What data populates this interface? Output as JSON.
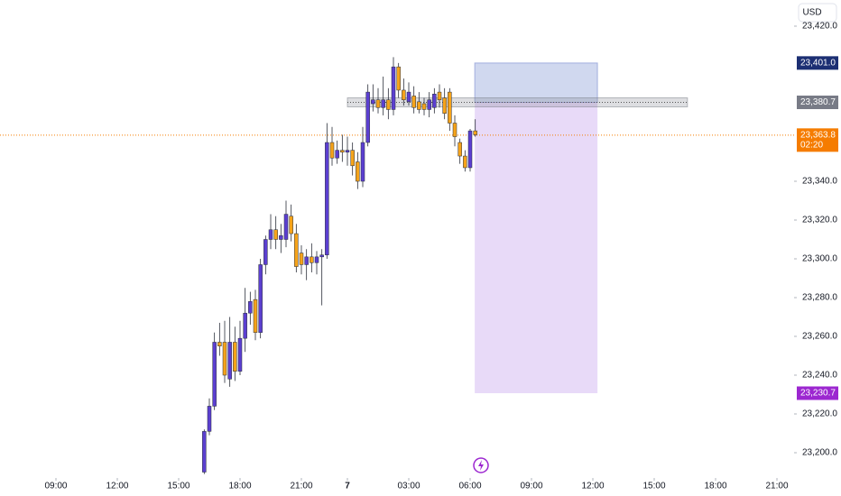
{
  "chart_data": {
    "type": "candlestick",
    "currency": "USD",
    "up_color": "#5b3fd0",
    "down_color": "#f5a31a",
    "xlim": [
      -10.94,
      144.35
    ],
    "ylim": [
      23186.98,
      23433.49
    ],
    "xticks": [
      {
        "value": 0,
        "label": "09:00"
      },
      {
        "value": 12,
        "label": "12:00"
      },
      {
        "value": 24,
        "label": "15:00"
      },
      {
        "value": 36,
        "label": "18:00"
      },
      {
        "value": 48,
        "label": "21:00"
      },
      {
        "value": 57,
        "label": "7"
      },
      {
        "value": 69,
        "label": "03:00"
      },
      {
        "value": 81,
        "label": "06:00"
      },
      {
        "value": 93,
        "label": "09:00"
      },
      {
        "value": 105,
        "label": "12:00"
      },
      {
        "value": 117,
        "label": "15:00"
      },
      {
        "value": 129,
        "label": "18:00"
      },
      {
        "value": 141,
        "label": "21:00"
      }
    ],
    "yticks": [
      {
        "value": 23200,
        "label": "23,200.0"
      },
      {
        "value": 23220,
        "label": "23,220.0"
      },
      {
        "value": 23240,
        "label": "23,240.0"
      },
      {
        "value": 23260,
        "label": "23,260.0"
      },
      {
        "value": 23280,
        "label": "23,280.0"
      },
      {
        "value": 23300,
        "label": "23,300.0"
      },
      {
        "value": 23320,
        "label": "23,320.0"
      },
      {
        "value": 23340,
        "label": "23,340.0"
      },
      {
        "value": 23420,
        "label": "23,420.0"
      }
    ],
    "candles": {
      "x": [
        29,
        30,
        31,
        32,
        33,
        34,
        35,
        36,
        37,
        38,
        39,
        40,
        41,
        42,
        43,
        44,
        45,
        46,
        47,
        48,
        49,
        50,
        51,
        52,
        53,
        54,
        55,
        56,
        57,
        58,
        59,
        60,
        61,
        62,
        63,
        64,
        65,
        66,
        67,
        68,
        69,
        70,
        71,
        72,
        73,
        74,
        75,
        76,
        77,
        78,
        79,
        80,
        81,
        82
      ],
      "open": [
        23190,
        23211,
        23224,
        23257,
        23257,
        23238,
        23257,
        23242,
        23259,
        23272,
        23279,
        23262,
        23297,
        23310,
        23315,
        23310,
        23310,
        23322,
        23313,
        23303,
        23297,
        23301,
        23298,
        23301,
        23302,
        23360,
        23352,
        23356,
        23355,
        23356,
        23350,
        23340,
        23360,
        23380,
        23382,
        23378,
        23382,
        23377,
        23399,
        23387,
        23381,
        23384,
        23381,
        23380,
        23377,
        23378,
        23386,
        23383,
        23386,
        23370,
        23360,
        23353,
        23347,
        23366
      ],
      "high": [
        23212,
        23228,
        23262,
        23267,
        23268,
        23270,
        23265,
        23268,
        23285,
        23283,
        23284,
        23300,
        23312,
        23323,
        23322,
        23318,
        23330,
        23328,
        23318,
        23307,
        23305,
        23308,
        23304,
        23305,
        23370,
        23368,
        23361,
        23364,
        23363,
        23360,
        23355,
        23368,
        23390,
        23390,
        23388,
        23394,
        23388,
        23404,
        23401,
        23393,
        23391,
        23389,
        23386,
        23383,
        23386,
        23388,
        23390,
        23388,
        23388,
        23374,
        23362,
        23356,
        23367,
        23372
      ],
      "low": [
        23189,
        23209,
        23222,
        23250,
        23236,
        23234,
        23237,
        23240,
        23252,
        23266,
        23258,
        23259,
        23292,
        23305,
        23305,
        23303,
        23306,
        23309,
        23293,
        23292,
        23289,
        23293,
        23292,
        23276,
        23300,
        23348,
        23349,
        23350,
        23348,
        23343,
        23336,
        23337,
        23358,
        23376,
        23375,
        23374,
        23372,
        23374,
        23383,
        23379,
        23379,
        23375,
        23375,
        23374,
        23373,
        23375,
        23378,
        23372,
        23366,
        23358,
        23349,
        23345,
        23345,
        23363
      ],
      "close": [
        23211,
        23224,
        23257,
        23255,
        23240,
        23257,
        23242,
        23259,
        23272,
        23278,
        23262,
        23297,
        23310,
        23315,
        23310,
        23312,
        23323,
        23313,
        23296,
        23297,
        23301,
        23298,
        23301,
        23302,
        23360,
        23352,
        23356,
        23355,
        23356,
        23348,
        23340,
        23360,
        23386,
        23382,
        23378,
        23382,
        23377,
        23399,
        23387,
        23382,
        23386,
        23378,
        23377,
        23377,
        23382,
        23385,
        23382,
        23375,
        23370,
        23363,
        23353,
        23347,
        23366,
        23364
      ]
    },
    "position": {
      "x_start": 81.9,
      "x_end": 105.9,
      "stop": 23401.0,
      "entry": 23380.7,
      "target": 23230.7
    },
    "level": {
      "value": 23380.7,
      "x_start": 57,
      "x_end": 123.5
    },
    "last_price": 23363.8,
    "markers": [
      {
        "value": 23401.0,
        "label": "23,401.0",
        "color": "#1c2f73"
      },
      {
        "value": 23380.7,
        "label": "23,380.7",
        "color": "#787b86"
      },
      {
        "value": 23363.8,
        "label": "23,363.8",
        "sublabel": "02:20",
        "color": "#f57c00"
      },
      {
        "value": 23230.7,
        "label": "23,230.7",
        "color": "#9c27d0"
      }
    ]
  }
}
